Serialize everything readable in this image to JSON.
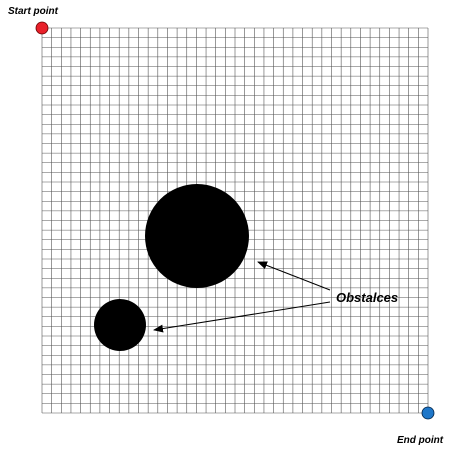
{
  "labels": {
    "start": "Start point",
    "end": "End point",
    "obstacles": "Obstalces"
  }
}
